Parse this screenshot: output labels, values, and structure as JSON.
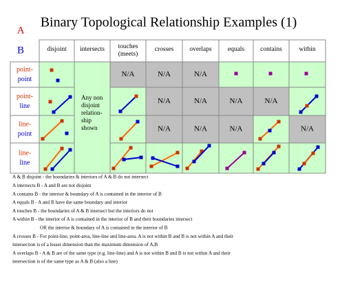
{
  "header": {
    "title": "Binary Topological Relationship Examples (1)"
  },
  "legend": {
    "a": "A",
    "b": "B"
  },
  "table": {
    "columns": [
      "disjoint",
      "intersects",
      [
        "touches",
        "(meets)"
      ],
      "crosses",
      "overlaps",
      "equals",
      "contains",
      "within"
    ],
    "rows": [
      {
        "a": "point-",
        "b": "point"
      },
      {
        "a": "point-",
        "b": "line"
      },
      {
        "a": "line-",
        "b": "point"
      },
      {
        "a": "line-",
        "b": "line"
      }
    ],
    "na": "N/A",
    "intersects_note": [
      "Any non",
      "disjoint",
      "relation-",
      "ship",
      "shown"
    ]
  },
  "notes": [
    "A & B disjoint - the boundaries & interiors of A & B do not intersect",
    "A intersects B - A and B are not disjoint",
    "A contains B - the interior & boundary of A is contained in the interior of B",
    "A equals B - A and B have the same boundary and interior",
    "A touches B - the boundaries of A & B intersect but the interiors do not",
    "A within B - the interior of A is contained in the interior of B and their boundaries intersect",
    "OR the interior & boundary of A is contained in the interior of B",
    "A crosses B - For point-line, point-area, line-line and line-area. A is not within B and B is not within A and their",
    "intersection is of a lesser dimension than the maximum dimension of A,B",
    "A overlaps B - A & B are of the same type (e.g. line-line) and A is not within B and B is not within A and their",
    "intersection is of the same type as A & B (also a line)"
  ]
}
